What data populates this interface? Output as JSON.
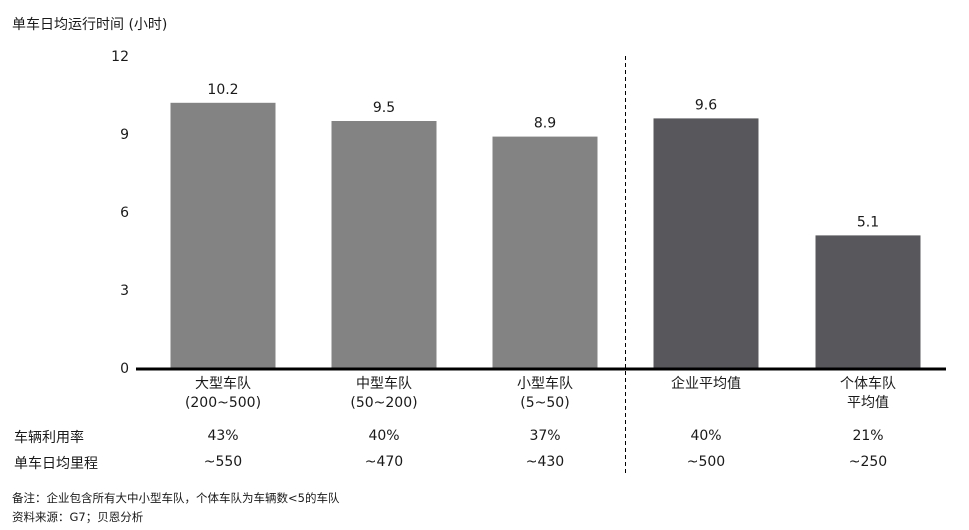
{
  "chart_data": {
    "type": "bar",
    "title": "单车日均运行时间 (小时)",
    "categories": [
      [
        "大型车队",
        "(200~500)"
      ],
      [
        "中型车队",
        "(50~200)"
      ],
      [
        "小型车队",
        "(5~50)"
      ],
      [
        "企业平均值"
      ],
      [
        "个体车队",
        "平均值"
      ]
    ],
    "values": [
      10.2,
      9.5,
      8.9,
      9.6,
      5.1
    ],
    "value_labels": [
      "10.2",
      "9.5",
      "8.9",
      "9.6",
      "5.1"
    ],
    "bar_colors": [
      "#838384",
      "#838384",
      "#838384",
      "#58575c",
      "#58575c"
    ],
    "ylim": [
      0,
      12
    ],
    "yticks": [
      0,
      3,
      6,
      9,
      12
    ],
    "grid": false,
    "divider_after_index": 2
  },
  "table_rows": [
    {
      "label": "车辆利用率",
      "values": [
        "43%",
        "40%",
        "37%",
        "40%",
        "21%"
      ]
    },
    {
      "label": "单车日均里程",
      "values": [
        "~550",
        "~470",
        "~430",
        "~500",
        "~250"
      ]
    }
  ],
  "notes": [
    "备注：企业包含所有大中小型车队，个体车队为车辆数<5的车队",
    "资料来源：G7；贝恩分析"
  ],
  "colors": {
    "light_bar": "#838384",
    "dark_bar": "#58575c",
    "axis": "#000000"
  }
}
